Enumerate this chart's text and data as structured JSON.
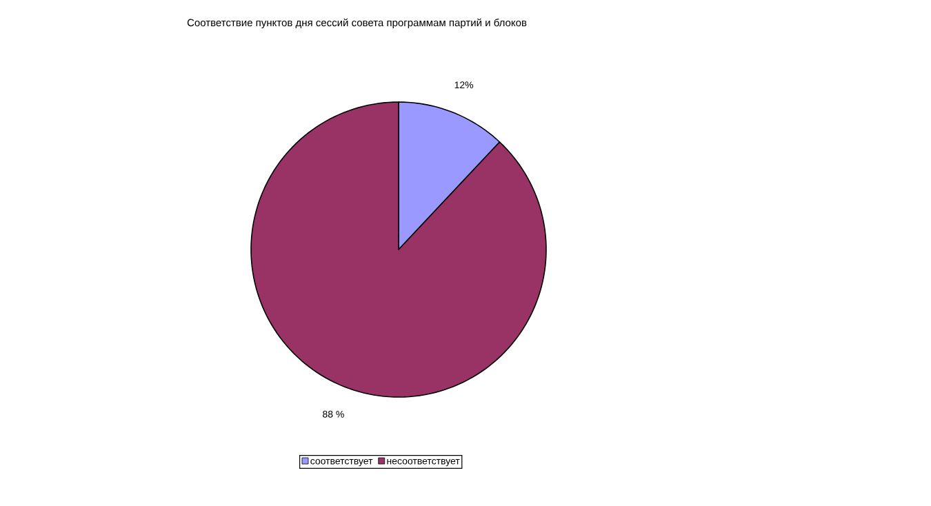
{
  "chart_data": {
    "type": "pie",
    "title": "Соответствие пунктов дня сессий совета программам партий и блоков",
    "categories": [
      "соответствует",
      "несоответствует"
    ],
    "values": [
      12,
      88
    ],
    "value_labels": [
      "12%",
      "88 %"
    ],
    "colors": [
      "#9999ff",
      "#993366"
    ],
    "legend": "bottom"
  }
}
